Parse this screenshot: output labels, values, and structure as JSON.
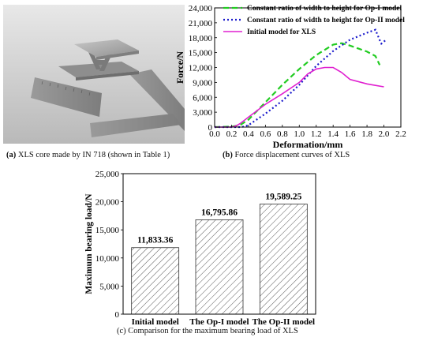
{
  "panel_a": {
    "caption_letter": "(a)",
    "caption": "XLS core made by IN 718 (shown in Table 1)"
  },
  "panel_b": {
    "caption_letter": "(b)",
    "caption": "Force displacement curves of XLS"
  },
  "panel_c": {
    "caption": "(c) Comparison for the maximum bearing load of XLS"
  },
  "colors": {
    "op1": "#22cc22",
    "op2": "#1a1acc",
    "initial": "#e020d0",
    "bar_hatch": "#555555"
  },
  "chart_data": [
    {
      "type": "line",
      "xlabel": "Deformation/mm",
      "ylabel": "Force/N",
      "xlim": [
        0.0,
        2.2
      ],
      "ylim": [
        0,
        24000
      ],
      "xticks": [
        "0.0",
        "0.2",
        "0.4",
        "0.6",
        "0.8",
        "1.0",
        "1.2",
        "1.4",
        "1.6",
        "1.8",
        "2.0",
        "2.2"
      ],
      "yticks": [
        "0",
        "3,000",
        "6,000",
        "9,000",
        "12,000",
        "15,000",
        "18,000",
        "21,000",
        "24,000"
      ],
      "legend_position": "top",
      "series": [
        {
          "name": "Constant ratio of width to height for Op-I  model",
          "style": "dashed",
          "x": [
            0.0,
            0.2,
            0.3,
            0.4,
            0.6,
            0.8,
            1.0,
            1.2,
            1.4,
            1.5,
            1.6,
            1.7,
            1.8,
            1.9,
            1.95
          ],
          "y": [
            0,
            100,
            400,
            1500,
            5000,
            8500,
            11700,
            14500,
            16600,
            16900,
            16400,
            15800,
            15200,
            14300,
            12500
          ]
        },
        {
          "name": "Constant ratio of width to height for Op-II  model",
          "style": "dotted",
          "x": [
            0.0,
            0.3,
            0.35,
            0.4,
            0.6,
            0.8,
            1.0,
            1.2,
            1.4,
            1.6,
            1.8,
            1.9,
            1.95,
            1.97,
            2.0,
            2.03
          ],
          "y": [
            0,
            0,
            100,
            400,
            2700,
            5300,
            8500,
            12300,
            15300,
            17600,
            19000,
            19600,
            17500,
            16800,
            17200,
            17700
          ]
        },
        {
          "name": "Initial model for XLS",
          "style": "solid",
          "x": [
            0.0,
            0.2,
            0.25,
            0.3,
            0.4,
            0.6,
            0.8,
            1.0,
            1.1,
            1.2,
            1.3,
            1.4,
            1.5,
            1.6,
            1.8,
            1.9,
            2.0
          ],
          "y": [
            0,
            0,
            200,
            700,
            2000,
            4600,
            6700,
            9000,
            10700,
            11700,
            12000,
            12000,
            11000,
            9600,
            8700,
            8400,
            8100
          ]
        }
      ]
    },
    {
      "type": "bar",
      "ylabel": "Maximum bearing load/N",
      "ylim": [
        0,
        25000
      ],
      "yticks": [
        "0",
        "5,000",
        "10,000",
        "15,000",
        "20,000",
        "25,000"
      ],
      "categories": [
        "Initial model",
        "The Op-I model",
        "The Op-II model"
      ],
      "values": [
        11833.36,
        16795.86,
        19589.25
      ],
      "value_labels": [
        "11,833.36",
        "16,795.86",
        "19,589.25"
      ],
      "pattern": "diagonal-hatch"
    }
  ]
}
